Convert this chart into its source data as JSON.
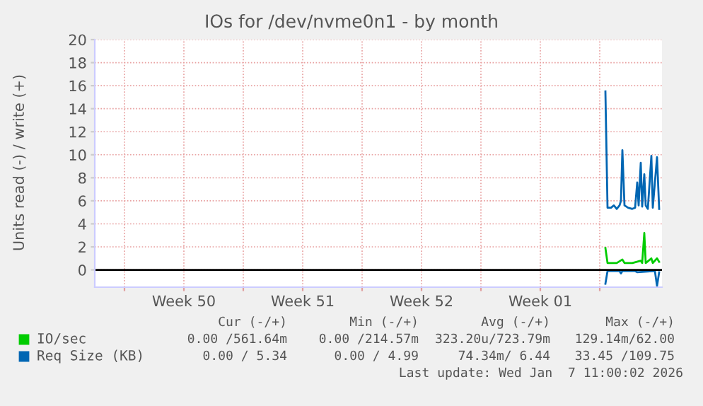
{
  "chart_data": {
    "type": "line",
    "title": "IOs for /dev/nvme0n1 - by month",
    "ylabel": "Units read (-) / write (+)",
    "xlim": [
      "2025-12-06T06:00",
      "2026-01-08T16:00"
    ],
    "xticks": [
      {
        "value": "2025-12-08",
        "label": null
      },
      {
        "value": "2025-12-11T12:00",
        "label": "Week 50"
      },
      {
        "value": "2025-12-15",
        "label": null
      },
      {
        "value": "2025-12-18T12:00",
        "label": "Week 51"
      },
      {
        "value": "2025-12-22",
        "label": null
      },
      {
        "value": "2025-12-25T12:00",
        "label": "Week 52"
      },
      {
        "value": "2025-12-29",
        "label": null
      },
      {
        "value": "2026-01-01T12:00",
        "label": "Week 01"
      },
      {
        "value": "2026-01-05",
        "label": null
      }
    ],
    "ylim": [
      -1.5,
      20
    ],
    "yticks": [
      0,
      2,
      4,
      6,
      8,
      10,
      12,
      14,
      16,
      18,
      20
    ],
    "grid": true,
    "legend": "bottom left",
    "ref_lines": [
      {
        "axis": "y",
        "value": 0,
        "color": "#000000"
      }
    ],
    "series": [
      {
        "name": "IO/sec",
        "color": "#00cc00",
        "x": [
          "2026-01-05T08:00",
          "2026-01-05T11:00",
          "2026-01-05T16:00",
          "2026-01-06T00:00",
          "2026-01-06T08:00",
          "2026-01-06T11:00",
          "2026-01-06T22:00",
          "2026-01-07T10:00",
          "2026-01-07T12:00",
          "2026-01-07T15:00",
          "2026-01-07T17:00",
          "2026-01-08T01:00",
          "2026-01-08T03:00",
          "2026-01-08T09:00",
          "2026-01-08T12:00"
        ],
        "values": [
          1.9,
          0.6,
          0.6,
          0.6,
          0.9,
          0.6,
          0.6,
          0.8,
          0.6,
          3.2,
          0.6,
          1.0,
          0.6,
          1.0,
          0.7
        ]
      },
      {
        "color": "#0066b3",
        "x": [
          "2026-01-05T08:00",
          "2026-01-05T11:00",
          "2026-01-06T04:00",
          "2026-01-06T06:00",
          "2026-01-06T08:00",
          "2026-01-07T02:00",
          "2026-01-07T05:00",
          "2026-01-08T06:00",
          "2026-01-08T09:00",
          "2026-01-08T12:00"
        ],
        "values": [
          -1.2,
          -0.1,
          -0.1,
          -0.3,
          -0.1,
          -0.1,
          -0.2,
          -0.1,
          -1.4,
          -0.2
        ]
      },
      {
        "name": "Req Size (KB)",
        "color": "#0066b3",
        "x": [
          "2026-01-05T08:00",
          "2026-01-05T11:00",
          "2026-01-05T16:00",
          "2026-01-05T20:00",
          "2026-01-06T00:00",
          "2026-01-06T04:00",
          "2026-01-06T06:00",
          "2026-01-06T08:00",
          "2026-01-06T11:00",
          "2026-01-06T16:00",
          "2026-01-06T22:00",
          "2026-01-07T02:00",
          "2026-01-07T05:00",
          "2026-01-07T07:00",
          "2026-01-07T10:00",
          "2026-01-07T12:00",
          "2026-01-07T15:00",
          "2026-01-07T17:00",
          "2026-01-07T20:00",
          "2026-01-08T01:00",
          "2026-01-08T03:00",
          "2026-01-08T09:00",
          "2026-01-08T12:00"
        ],
        "values": [
          15.5,
          5.4,
          5.4,
          5.6,
          5.3,
          5.6,
          6.0,
          10.4,
          5.6,
          5.4,
          5.3,
          5.4,
          7.6,
          5.6,
          9.3,
          5.5,
          8.3,
          5.6,
          5.3,
          9.9,
          5.4,
          9.8,
          5.3
        ]
      }
    ],
    "annotations": [
      "Cur (-/+)",
      "Min (-/+)",
      "Avg (-/+)",
      "Max (-/+)",
      "0.00 /561.64m",
      "0.00 /214.57m",
      "323.20u/723.79m",
      "129.14m/62.00",
      "0.00 / 5.34",
      "0.00 / 4.99",
      "74.34m/ 6.44",
      "33.45 /109.75",
      "Last update: Wed Jan  7 11:00:02 2026"
    ]
  }
}
